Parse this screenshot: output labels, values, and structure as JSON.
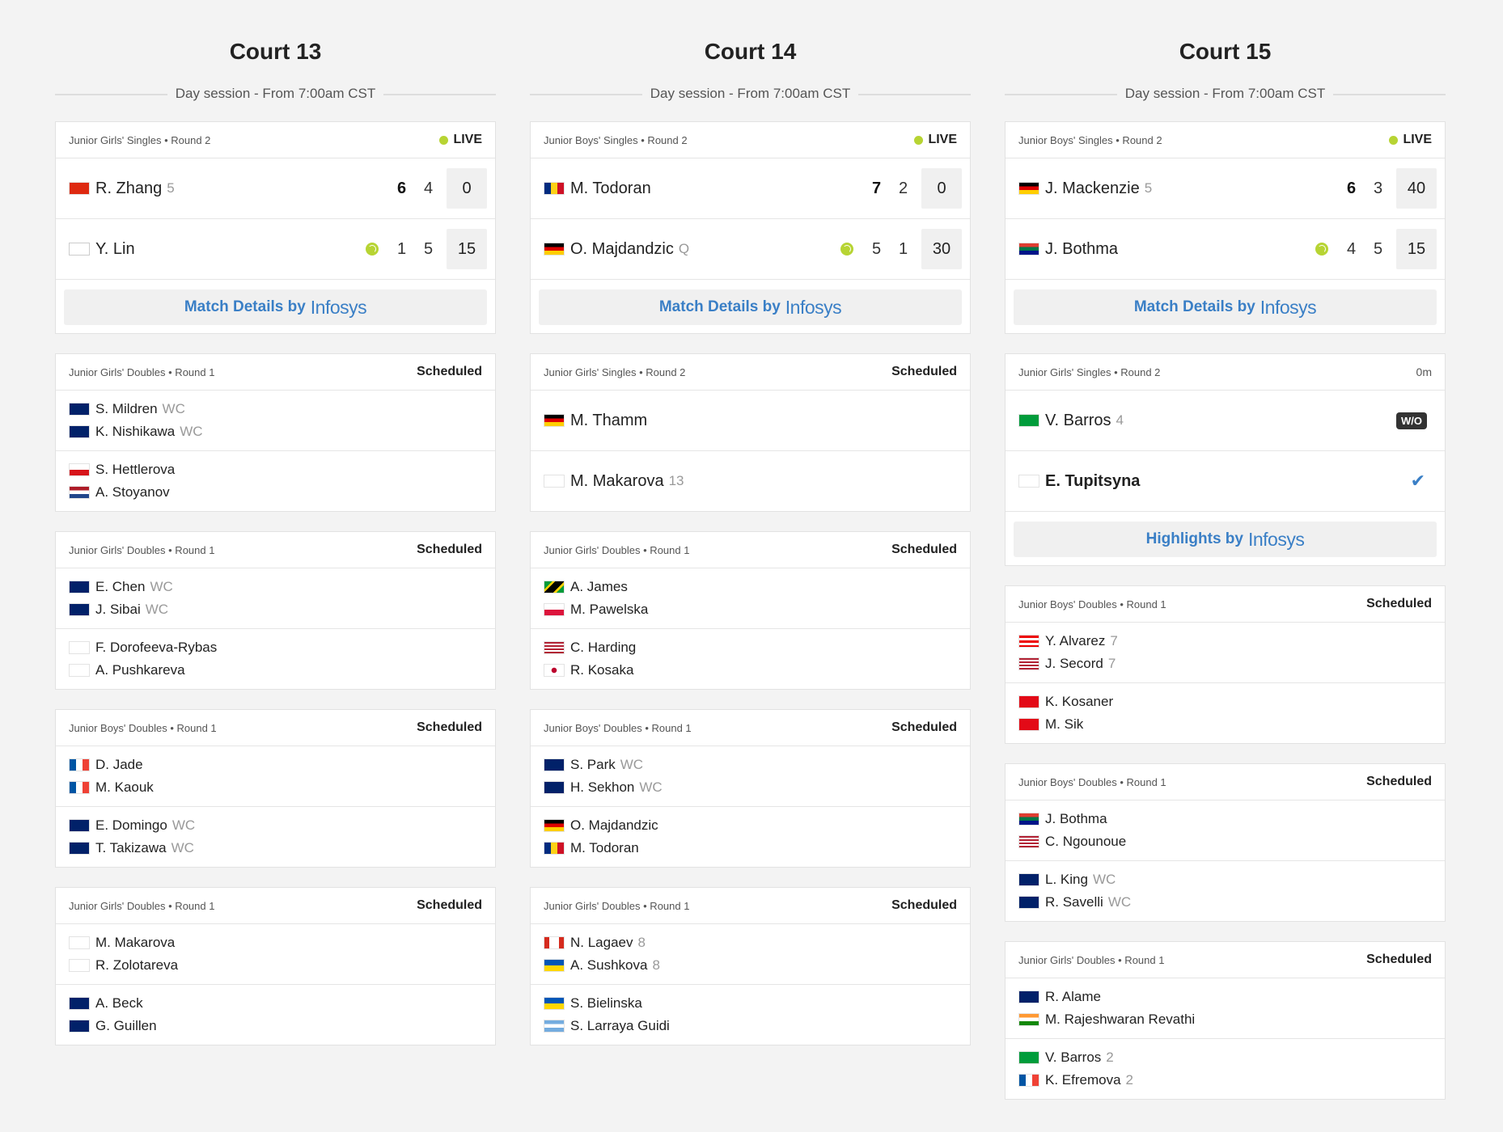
{
  "courts": [
    {
      "title": "Court 13",
      "session": "Day session - From 7:00am CST",
      "matches": [
        {
          "type": "live",
          "round": "Junior Girls' Singles • Round 2",
          "status": "LIVE",
          "players": [
            {
              "name": "R. Zhang",
              "seed": "5",
              "flag": "CHN",
              "serving": false,
              "sets": [
                "6",
                "4"
              ],
              "setwin": [
                true,
                false
              ],
              "game": "0"
            },
            {
              "name": "Y. Lin",
              "seed": "",
              "flag": "TPE",
              "serving": true,
              "sets": [
                "1",
                "5"
              ],
              "setwin": [
                false,
                false
              ],
              "game": "15"
            }
          ],
          "button": {
            "text": "Match Details by",
            "brand": "Infosys"
          }
        },
        {
          "type": "doubles",
          "round": "Junior Girls' Doubles • Round 1",
          "status": "Scheduled",
          "teams": [
            [
              {
                "name": "S. Mildren",
                "seed": "WC",
                "flag": "AUS"
              },
              {
                "name": "K. Nishikawa",
                "seed": "WC",
                "flag": "AUS"
              }
            ],
            [
              {
                "name": "S. Hettlerova",
                "seed": "",
                "flag": "CZE"
              },
              {
                "name": "A. Stoyanov",
                "seed": "",
                "flag": "NED"
              }
            ]
          ]
        },
        {
          "type": "doubles",
          "round": "Junior Girls' Doubles • Round 1",
          "status": "Scheduled",
          "teams": [
            [
              {
                "name": "E. Chen",
                "seed": "WC",
                "flag": "AUS"
              },
              {
                "name": "J. Sibai",
                "seed": "WC",
                "flag": "AUS"
              }
            ],
            [
              {
                "name": "F. Dorofeeva-Rybas",
                "seed": "",
                "flag": "NONE"
              },
              {
                "name": "A. Pushkareva",
                "seed": "",
                "flag": "NONE"
              }
            ]
          ]
        },
        {
          "type": "doubles",
          "round": "Junior Boys' Doubles • Round 1",
          "status": "Scheduled",
          "teams": [
            [
              {
                "name": "D. Jade",
                "seed": "",
                "flag": "FRA"
              },
              {
                "name": "M. Kaouk",
                "seed": "",
                "flag": "FRA"
              }
            ],
            [
              {
                "name": "E. Domingo",
                "seed": "WC",
                "flag": "AUS"
              },
              {
                "name": "T. Takizawa",
                "seed": "WC",
                "flag": "AUS"
              }
            ]
          ]
        },
        {
          "type": "doubles",
          "round": "Junior Girls' Doubles • Round 1",
          "status": "Scheduled",
          "teams": [
            [
              {
                "name": "M. Makarova",
                "seed": "",
                "flag": "NONE"
              },
              {
                "name": "R. Zolotareva",
                "seed": "",
                "flag": "NONE"
              }
            ],
            [
              {
                "name": "A. Beck",
                "seed": "",
                "flag": "AUS"
              },
              {
                "name": "G. Guillen",
                "seed": "",
                "flag": "AUS"
              }
            ]
          ]
        }
      ]
    },
    {
      "title": "Court 14",
      "session": "Day session - From 7:00am CST",
      "matches": [
        {
          "type": "live",
          "round": "Junior Boys' Singles • Round 2",
          "status": "LIVE",
          "players": [
            {
              "name": "M. Todoran",
              "seed": "",
              "flag": "ROU",
              "serving": false,
              "sets": [
                "7",
                "2"
              ],
              "setwin": [
                true,
                false
              ],
              "game": "0"
            },
            {
              "name": "O. Majdandzic",
              "seed": "Q",
              "flag": "GER",
              "serving": true,
              "sets": [
                "5",
                "1"
              ],
              "setwin": [
                false,
                false
              ],
              "game": "30"
            }
          ],
          "button": {
            "text": "Match Details by",
            "brand": "Infosys"
          }
        },
        {
          "type": "singles",
          "round": "Junior Girls' Singles • Round 2",
          "status": "Scheduled",
          "players": [
            {
              "name": "M. Thamm",
              "seed": "",
              "flag": "GER"
            },
            {
              "name": "M. Makarova",
              "seed": "13",
              "flag": "NONE"
            }
          ]
        },
        {
          "type": "doubles",
          "round": "Junior Girls' Doubles • Round 1",
          "status": "Scheduled",
          "teams": [
            [
              {
                "name": "A. James",
                "seed": "",
                "flag": "JAM"
              },
              {
                "name": "M. Pawelska",
                "seed": "",
                "flag": "POL"
              }
            ],
            [
              {
                "name": "C. Harding",
                "seed": "",
                "flag": "USA"
              },
              {
                "name": "R. Kosaka",
                "seed": "",
                "flag": "JPN"
              }
            ]
          ]
        },
        {
          "type": "doubles",
          "round": "Junior Boys' Doubles • Round 1",
          "status": "Scheduled",
          "teams": [
            [
              {
                "name": "S. Park",
                "seed": "WC",
                "flag": "AUS"
              },
              {
                "name": "H. Sekhon",
                "seed": "WC",
                "flag": "AUS"
              }
            ],
            [
              {
                "name": "O. Majdandzic",
                "seed": "",
                "flag": "GER"
              },
              {
                "name": "M. Todoran",
                "seed": "",
                "flag": "ROU"
              }
            ]
          ]
        },
        {
          "type": "doubles",
          "round": "Junior Girls' Doubles • Round 1",
          "status": "Scheduled",
          "teams": [
            [
              {
                "name": "N. Lagaev",
                "seed": "8",
                "flag": "CAN"
              },
              {
                "name": "A. Sushkova",
                "seed": "8",
                "flag": "UKR"
              }
            ],
            [
              {
                "name": "S. Bielinska",
                "seed": "",
                "flag": "UKR"
              },
              {
                "name": "S. Larraya Guidi",
                "seed": "",
                "flag": "ARG"
              }
            ]
          ]
        }
      ]
    },
    {
      "title": "Court 15",
      "session": "Day session - From 7:00am CST",
      "matches": [
        {
          "type": "live",
          "round": "Junior Boys' Singles • Round 2",
          "status": "LIVE",
          "players": [
            {
              "name": "J. Mackenzie",
              "seed": "5",
              "flag": "GER",
              "serving": false,
              "sets": [
                "6",
                "3"
              ],
              "setwin": [
                true,
                false
              ],
              "game": "40"
            },
            {
              "name": "J. Bothma",
              "seed": "",
              "flag": "RSA",
              "serving": true,
              "sets": [
                "4",
                "5"
              ],
              "setwin": [
                false,
                false
              ],
              "game": "15"
            }
          ],
          "button": {
            "text": "Match Details by",
            "brand": "Infosys"
          }
        },
        {
          "type": "finished",
          "round": "Junior Girls' Singles • Round 2",
          "status": "0m",
          "players": [
            {
              "name": "V. Barros",
              "seed": "4",
              "flag": "BRA",
              "badge": "W/O",
              "winner": false
            },
            {
              "name": "E. Tupitsyna",
              "seed": "",
              "flag": "NONE",
              "badge": "",
              "winner": true
            }
          ],
          "button": {
            "text": "Highlights by",
            "brand": "Infosys"
          }
        },
        {
          "type": "doubles",
          "round": "Junior Boys' Doubles • Round 1",
          "status": "Scheduled",
          "teams": [
            [
              {
                "name": "Y. Alvarez",
                "seed": "7",
                "flag": "PUR"
              },
              {
                "name": "J. Secord",
                "seed": "7",
                "flag": "USA"
              }
            ],
            [
              {
                "name": "K. Kosaner",
                "seed": "",
                "flag": "TUR"
              },
              {
                "name": "M. Sik",
                "seed": "",
                "flag": "TUR"
              }
            ]
          ]
        },
        {
          "type": "doubles",
          "round": "Junior Boys' Doubles • Round 1",
          "status": "Scheduled",
          "teams": [
            [
              {
                "name": "J. Bothma",
                "seed": "",
                "flag": "RSA"
              },
              {
                "name": "C. Ngounoue",
                "seed": "",
                "flag": "USA"
              }
            ],
            [
              {
                "name": "L. King",
                "seed": "WC",
                "flag": "AUS"
              },
              {
                "name": "R. Savelli",
                "seed": "WC",
                "flag": "AUS"
              }
            ]
          ]
        },
        {
          "type": "doubles",
          "round": "Junior Girls' Doubles • Round 1",
          "status": "Scheduled",
          "teams": [
            [
              {
                "name": "R. Alame",
                "seed": "",
                "flag": "AUS"
              },
              {
                "name": "M. Rajeshwaran Revathi",
                "seed": "",
                "flag": "IND"
              }
            ],
            [
              {
                "name": "V. Barros",
                "seed": "2",
                "flag": "BRA"
              },
              {
                "name": "K. Efremova",
                "seed": "2",
                "flag": "FRA"
              }
            ]
          ]
        }
      ]
    }
  ],
  "colors": {
    "live": "#b7d433",
    "link": "#3a7fc6",
    "background": "#f3f3f3"
  }
}
